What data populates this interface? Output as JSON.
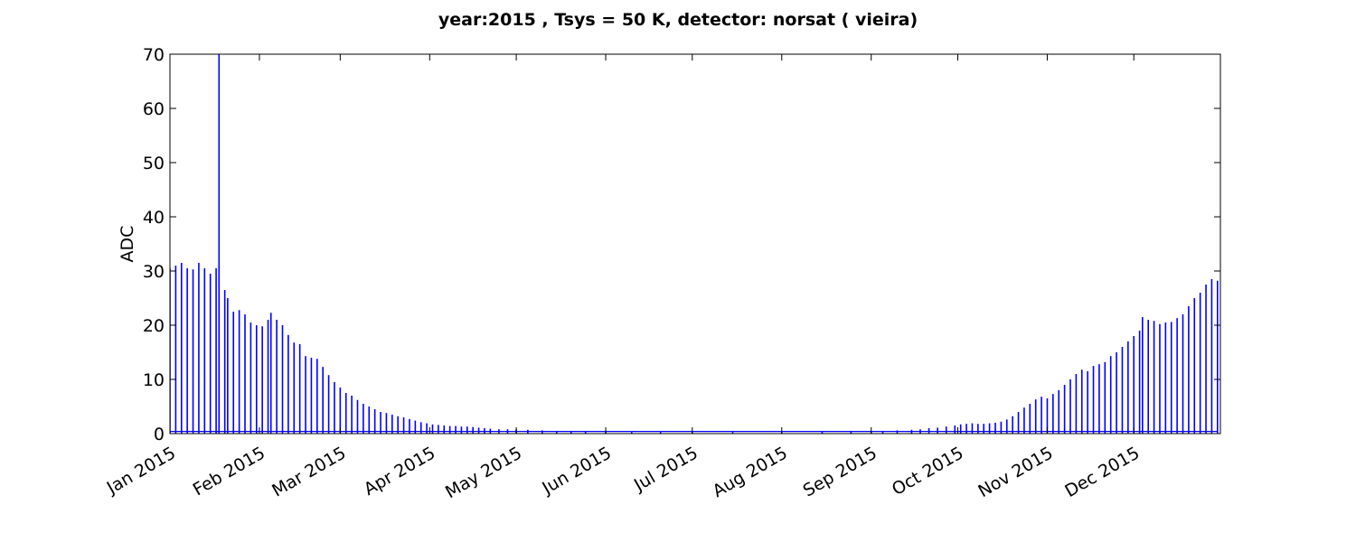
{
  "chart_data": {
    "type": "line",
    "title": "year:2015 , Tsys = 50 K, detector: norsat ( vieira)",
    "xlabel": "",
    "ylabel": "ADC",
    "x_ticks": [
      "Jan 2015",
      "Feb 2015",
      "Mar 2015",
      "Apr 2015",
      "May 2015",
      "Jun 2015",
      "Jul 2015",
      "Aug 2015",
      "Sep 2015",
      "Oct 2015",
      "Nov 2015",
      "Dec 2015"
    ],
    "x_tick_dates": [
      "2015-01-01",
      "2015-02-01",
      "2015-03-01",
      "2015-04-01",
      "2015-05-01",
      "2015-06-01",
      "2015-07-01",
      "2015-08-01",
      "2015-09-01",
      "2015-10-01",
      "2015-11-01",
      "2015-12-01"
    ],
    "xlim": [
      "2015-01-01",
      "2015-12-31"
    ],
    "ylim": [
      0,
      70
    ],
    "y_ticks": [
      0,
      10,
      20,
      30,
      40,
      50,
      60,
      70
    ],
    "grid": false,
    "series": [
      {
        "color": "#0000ff",
        "peak_values": [
          [
            "2015-01-01",
            30.5
          ],
          [
            "2015-01-03",
            31.0
          ],
          [
            "2015-01-05",
            31.5
          ],
          [
            "2015-01-07",
            30.5
          ],
          [
            "2015-01-09",
            30.3
          ],
          [
            "2015-01-11",
            31.5
          ],
          [
            "2015-01-13",
            30.5
          ],
          [
            "2015-01-15",
            29.5
          ],
          [
            "2015-01-17",
            30.5
          ],
          [
            "2015-01-18",
            70.0
          ],
          [
            "2015-01-20",
            26.5
          ],
          [
            "2015-01-21",
            25.0
          ],
          [
            "2015-01-23",
            22.5
          ],
          [
            "2015-01-25",
            22.8
          ],
          [
            "2015-01-27",
            22.0
          ],
          [
            "2015-01-29",
            20.5
          ],
          [
            "2015-01-31",
            20.0
          ],
          [
            "2015-02-02",
            19.8
          ],
          [
            "2015-02-04",
            21.0
          ],
          [
            "2015-02-05",
            22.3
          ],
          [
            "2015-02-07",
            21.0
          ],
          [
            "2015-02-09",
            20.0
          ],
          [
            "2015-02-11",
            18.2
          ],
          [
            "2015-02-13",
            16.8
          ],
          [
            "2015-02-15",
            16.5
          ],
          [
            "2015-02-17",
            14.3
          ],
          [
            "2015-02-19",
            14.0
          ],
          [
            "2015-02-21",
            13.8
          ],
          [
            "2015-02-23",
            12.3
          ],
          [
            "2015-02-25",
            10.8
          ],
          [
            "2015-02-27",
            9.5
          ],
          [
            "2015-03-01",
            8.5
          ],
          [
            "2015-03-03",
            7.5
          ],
          [
            "2015-03-05",
            7.0
          ],
          [
            "2015-03-07",
            6.2
          ],
          [
            "2015-03-09",
            5.5
          ],
          [
            "2015-03-11",
            5.0
          ],
          [
            "2015-03-13",
            4.5
          ],
          [
            "2015-03-15",
            4.0
          ],
          [
            "2015-03-17",
            3.8
          ],
          [
            "2015-03-19",
            3.5
          ],
          [
            "2015-03-21",
            3.2
          ],
          [
            "2015-03-23",
            3.0
          ],
          [
            "2015-03-25",
            2.7
          ],
          [
            "2015-03-27",
            2.4
          ],
          [
            "2015-03-29",
            2.1
          ],
          [
            "2015-03-31",
            1.9
          ],
          [
            "2015-04-02",
            1.7
          ],
          [
            "2015-04-04",
            1.6
          ],
          [
            "2015-04-06",
            1.5
          ],
          [
            "2015-04-08",
            1.4
          ],
          [
            "2015-04-10",
            1.4
          ],
          [
            "2015-04-12",
            1.3
          ],
          [
            "2015-04-14",
            1.3
          ],
          [
            "2015-04-16",
            1.2
          ],
          [
            "2015-04-18",
            1.1
          ],
          [
            "2015-04-20",
            1.0
          ],
          [
            "2015-04-22",
            0.9
          ],
          [
            "2015-04-25",
            0.8
          ],
          [
            "2015-04-28",
            0.8
          ],
          [
            "2015-05-01",
            0.8
          ],
          [
            "2015-05-05",
            0.7
          ],
          [
            "2015-05-10",
            0.6
          ],
          [
            "2015-05-15",
            0.5
          ],
          [
            "2015-05-20",
            0.45
          ],
          [
            "2015-05-25",
            0.4
          ],
          [
            "2015-06-01",
            0.35
          ],
          [
            "2015-06-10",
            0.3
          ],
          [
            "2015-06-20",
            0.3
          ],
          [
            "2015-07-01",
            0.3
          ],
          [
            "2015-07-15",
            0.3
          ],
          [
            "2015-08-01",
            0.3
          ],
          [
            "2015-08-15",
            0.35
          ],
          [
            "2015-08-25",
            0.4
          ],
          [
            "2015-09-01",
            0.5
          ],
          [
            "2015-09-05",
            0.5
          ],
          [
            "2015-09-10",
            0.6
          ],
          [
            "2015-09-15",
            0.7
          ],
          [
            "2015-09-18",
            0.8
          ],
          [
            "2015-09-21",
            1.0
          ],
          [
            "2015-09-24",
            1.1
          ],
          [
            "2015-09-27",
            1.3
          ],
          [
            "2015-09-30",
            1.5
          ],
          [
            "2015-10-02",
            1.7
          ],
          [
            "2015-10-04",
            1.8
          ],
          [
            "2015-10-06",
            1.9
          ],
          [
            "2015-10-08",
            1.8
          ],
          [
            "2015-10-10",
            1.8
          ],
          [
            "2015-10-12",
            1.9
          ],
          [
            "2015-10-14",
            2.0
          ],
          [
            "2015-10-16",
            2.2
          ],
          [
            "2015-10-18",
            2.6
          ],
          [
            "2015-10-20",
            3.2
          ],
          [
            "2015-10-22",
            4.0
          ],
          [
            "2015-10-24",
            4.8
          ],
          [
            "2015-10-26",
            5.5
          ],
          [
            "2015-10-28",
            6.3
          ],
          [
            "2015-10-30",
            6.8
          ],
          [
            "2015-11-01",
            6.5
          ],
          [
            "2015-11-03",
            7.3
          ],
          [
            "2015-11-05",
            8.0
          ],
          [
            "2015-11-07",
            9.0
          ],
          [
            "2015-11-09",
            10.0
          ],
          [
            "2015-11-11",
            11.0
          ],
          [
            "2015-11-13",
            11.8
          ],
          [
            "2015-11-15",
            11.5
          ],
          [
            "2015-11-17",
            12.5
          ],
          [
            "2015-11-19",
            12.8
          ],
          [
            "2015-11-21",
            13.2
          ],
          [
            "2015-11-23",
            14.3
          ],
          [
            "2015-11-25",
            15.0
          ],
          [
            "2015-11-27",
            16.0
          ],
          [
            "2015-11-29",
            17.0
          ],
          [
            "2015-12-01",
            18.0
          ],
          [
            "2015-12-03",
            19.0
          ],
          [
            "2015-12-04",
            21.5
          ],
          [
            "2015-12-06",
            21.0
          ],
          [
            "2015-12-08",
            20.8
          ],
          [
            "2015-12-10",
            20.2
          ],
          [
            "2015-12-12",
            20.5
          ],
          [
            "2015-12-14",
            20.6
          ],
          [
            "2015-12-16",
            21.3
          ],
          [
            "2015-12-18",
            22.0
          ],
          [
            "2015-12-20",
            23.5
          ],
          [
            "2015-12-22",
            25.0
          ],
          [
            "2015-12-24",
            26.0
          ],
          [
            "2015-12-26",
            27.5
          ],
          [
            "2015-12-28",
            28.5
          ],
          [
            "2015-12-30",
            28.2
          ]
        ]
      }
    ]
  }
}
